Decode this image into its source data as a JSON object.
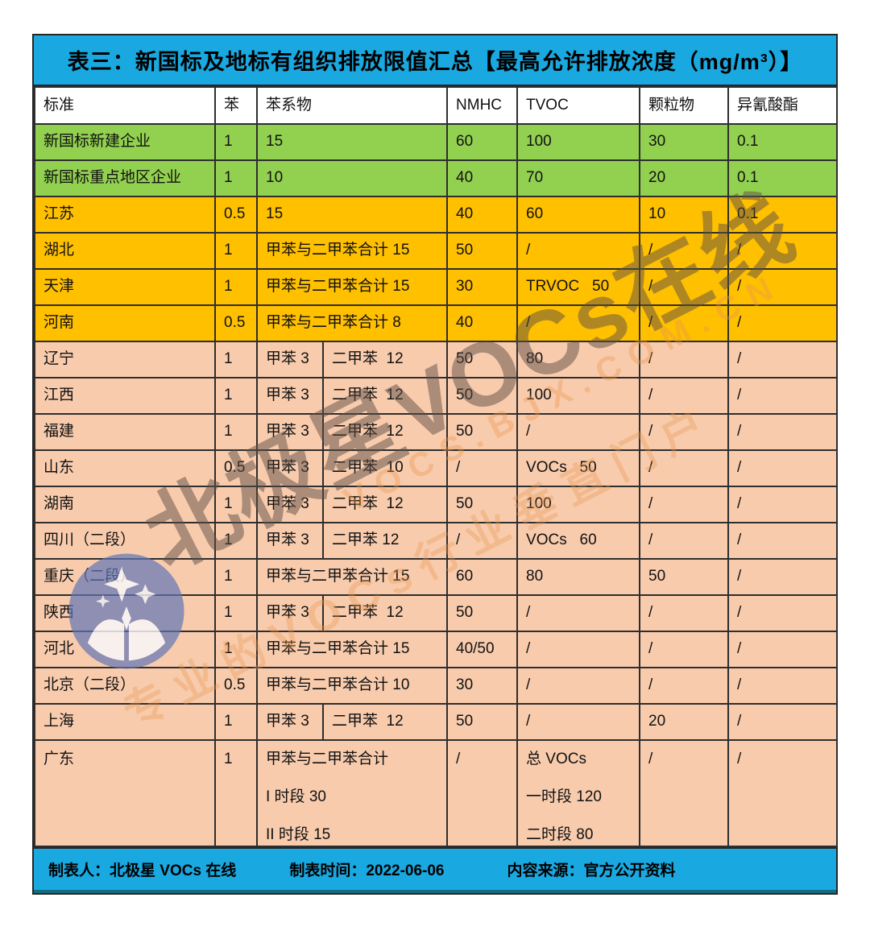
{
  "title": "表三：新国标及地标有组织排放限值汇总【最高允许排放浓度（mg/m³）】",
  "columns": [
    "标准",
    "苯",
    "苯系物",
    "NMHC",
    "TVOC",
    "颗粒物",
    "异氰酸酯"
  ],
  "rows": [
    {
      "name": "新国标新建企业",
      "theme": "green",
      "benzene": "1",
      "benzene_series": {
        "type": "merged",
        "text": "15"
      },
      "nmhc": "60",
      "tvoc": "100",
      "particulate": "30",
      "isocyanate": "0.1"
    },
    {
      "name": "新国标重点地区企业",
      "theme": "green",
      "benzene": "1",
      "benzene_series": {
        "type": "merged",
        "text": "10"
      },
      "nmhc": "40",
      "tvoc": "70",
      "particulate": "20",
      "isocyanate": "0.1"
    },
    {
      "name": "江苏",
      "theme": "yellow",
      "benzene": "0.5",
      "benzene_series": {
        "type": "merged",
        "text": "15"
      },
      "nmhc": "40",
      "tvoc": "60",
      "particulate": "10",
      "isocyanate": "0.1"
    },
    {
      "name": "湖北",
      "theme": "yellow",
      "benzene": "1",
      "benzene_series": {
        "type": "merged",
        "text": "甲苯与二甲苯合计 15"
      },
      "nmhc": "50",
      "tvoc": "/",
      "particulate": "/",
      "isocyanate": "/"
    },
    {
      "name": "天津",
      "theme": "yellow",
      "benzene": "1",
      "benzene_series": {
        "type": "merged",
        "text": "甲苯与二甲苯合计 15"
      },
      "nmhc": "30",
      "tvoc": "TRVOC   50",
      "particulate": "/",
      "isocyanate": "/"
    },
    {
      "name": "河南",
      "theme": "yellow",
      "benzene": "0.5",
      "benzene_series": {
        "type": "merged",
        "text": "甲苯与二甲苯合计 8"
      },
      "nmhc": "40",
      "tvoc": "/",
      "particulate": "/",
      "isocyanate": "/"
    },
    {
      "name": "辽宁",
      "theme": "peach",
      "benzene": "1",
      "benzene_series": {
        "type": "split",
        "parts": [
          "甲苯 3",
          "二甲苯  12"
        ]
      },
      "nmhc": "50",
      "tvoc": "80",
      "particulate": "/",
      "isocyanate": "/"
    },
    {
      "name": "江西",
      "theme": "peach",
      "benzene": "1",
      "benzene_series": {
        "type": "split",
        "parts": [
          "甲苯 3",
          "二甲苯  12"
        ]
      },
      "nmhc": "50",
      "tvoc": "100",
      "particulate": "/",
      "isocyanate": "/"
    },
    {
      "name": "福建",
      "theme": "peach",
      "benzene": "1",
      "benzene_series": {
        "type": "split",
        "parts": [
          "甲苯 3",
          "二甲苯  12"
        ]
      },
      "nmhc": "50",
      "tvoc": "/",
      "particulate": "/",
      "isocyanate": "/"
    },
    {
      "name": "山东",
      "theme": "peach",
      "benzene": "0.5",
      "benzene_series": {
        "type": "split",
        "parts": [
          "甲苯 3",
          "二甲苯  10"
        ]
      },
      "nmhc": "/",
      "tvoc": "VOCs   50",
      "particulate": "/",
      "isocyanate": "/"
    },
    {
      "name": "湖南",
      "theme": "peach",
      "benzene": "1",
      "benzene_series": {
        "type": "split",
        "parts": [
          "甲苯 3",
          "二甲苯  12"
        ]
      },
      "nmhc": "50",
      "tvoc": "100",
      "particulate": "/",
      "isocyanate": "/"
    },
    {
      "name": "四川（二段）",
      "theme": "peach",
      "benzene": "1",
      "benzene_series": {
        "type": "split",
        "parts": [
          "甲苯 3",
          "二甲苯 12"
        ]
      },
      "nmhc": "/",
      "tvoc": "VOCs   60",
      "particulate": "/",
      "isocyanate": "/"
    },
    {
      "name": "重庆（二段）",
      "theme": "peach",
      "benzene": "1",
      "benzene_series": {
        "type": "merged",
        "text": "甲苯与二甲苯合计 15"
      },
      "nmhc": "60",
      "tvoc": "80",
      "particulate": "50",
      "isocyanate": "/"
    },
    {
      "name": "陕西",
      "theme": "peach",
      "benzene": "1",
      "benzene_series": {
        "type": "split",
        "parts": [
          "甲苯 3",
          "二甲苯  12"
        ]
      },
      "nmhc": "50",
      "tvoc": "/",
      "particulate": "/",
      "isocyanate": "/"
    },
    {
      "name": "河北",
      "theme": "peach",
      "benzene": "1",
      "benzene_series": {
        "type": "merged",
        "text": "甲苯与二甲苯合计 15"
      },
      "nmhc": "40/50",
      "tvoc": "/",
      "particulate": "/",
      "isocyanate": "/"
    },
    {
      "name": "北京（二段）",
      "theme": "peach",
      "benzene": "0.5",
      "benzene_series": {
        "type": "merged",
        "text": "甲苯与二甲苯合计 10"
      },
      "nmhc": "30",
      "tvoc": "/",
      "particulate": "/",
      "isocyanate": "/"
    },
    {
      "name": "上海",
      "theme": "peach",
      "benzene": "1",
      "benzene_series": {
        "type": "split",
        "parts": [
          "甲苯 3",
          "二甲苯  12"
        ]
      },
      "nmhc": "50",
      "tvoc": "/",
      "particulate": "20",
      "isocyanate": "/"
    },
    {
      "name": "广东",
      "theme": "peach",
      "tall": true,
      "benzene": "1",
      "benzene_series": {
        "type": "lines",
        "lines": [
          "甲苯与二甲苯合计",
          "I 时段 30",
          "II 时段 15"
        ]
      },
      "nmhc": "/",
      "tvoc_lines": [
        "总 VOCs",
        "一时段 120",
        "二时段 80"
      ],
      "particulate": "/",
      "isocyanate": "/"
    }
  ],
  "footer": {
    "creator": "制表人：北极星 VOCs 在线",
    "time": "制表时间：2022-06-06",
    "source": "内容来源：官方公开资料"
  },
  "watermark": {
    "main": "北极星VOCs在线",
    "url": "VOCS.BJX.COM.CN",
    "slogan": "专业的VOCs行业垂直门户",
    "logo": "beijixing-vocs-logo"
  },
  "colors": {
    "header_blue": "#1aa8e0",
    "green": "#92d050",
    "yellow": "#ffc000",
    "peach": "#f8cbad"
  }
}
